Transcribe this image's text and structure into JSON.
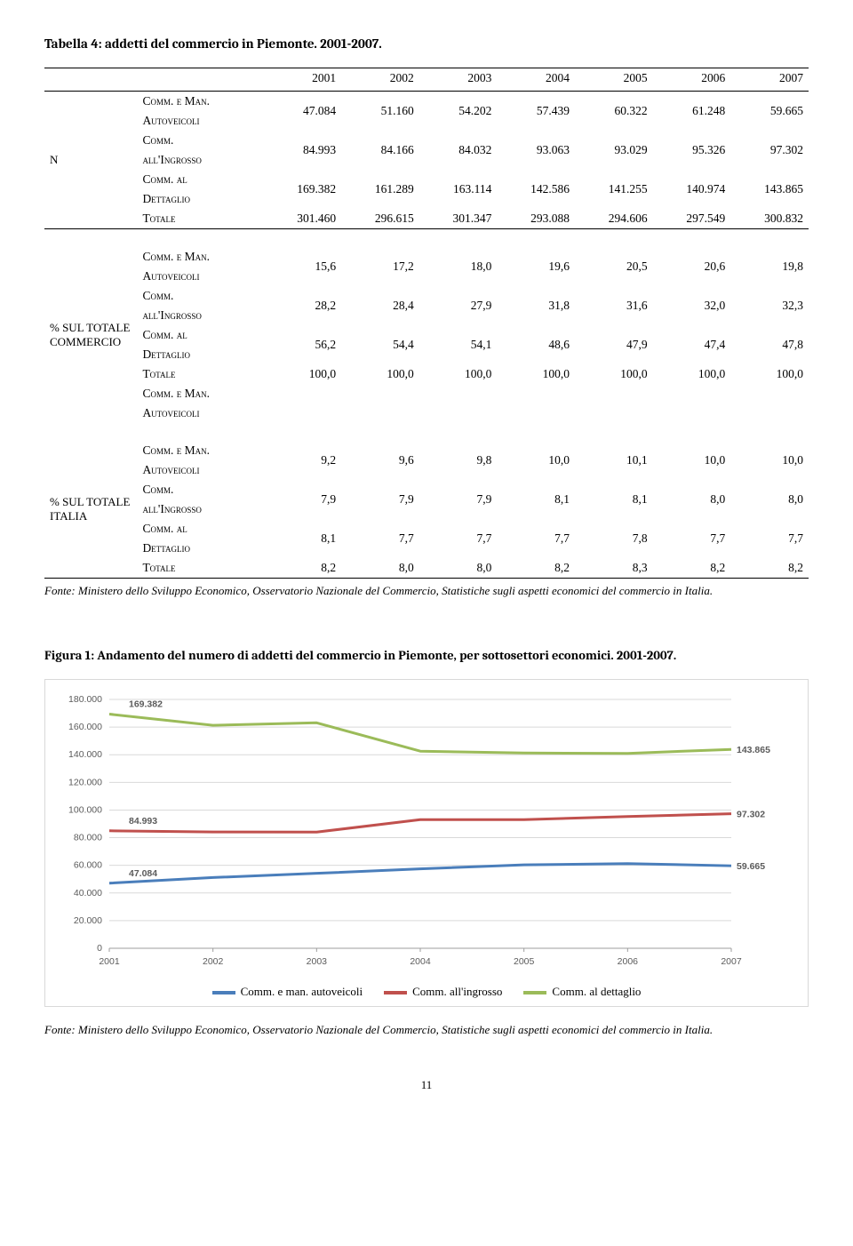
{
  "table": {
    "title": "Tabella 4: addetti del commercio in Piemonte. 2001-2007.",
    "years": [
      "2001",
      "2002",
      "2003",
      "2004",
      "2005",
      "2006",
      "2007"
    ],
    "groups": [
      {
        "label": "N",
        "rows": [
          {
            "labelA": "Comm. e Man.",
            "labelB": "Autoveicoli",
            "cells": [
              "47.084",
              "51.160",
              "54.202",
              "57.439",
              "60.322",
              "61.248",
              "59.665"
            ]
          },
          {
            "labelA": "Comm.",
            "labelB": "all'Ingrosso",
            "cells": [
              "84.993",
              "84.166",
              "84.032",
              "93.063",
              "93.029",
              "95.326",
              "97.302"
            ]
          },
          {
            "labelA": "Comm. al",
            "labelB": "Dettaglio",
            "cells": [
              "169.382",
              "161.289",
              "163.114",
              "142.586",
              "141.255",
              "140.974",
              "143.865"
            ]
          },
          {
            "labelA": "Totale",
            "labelB": "",
            "cells": [
              "301.460",
              "296.615",
              "301.347",
              "293.088",
              "294.606",
              "297.549",
              "300.832"
            ]
          }
        ]
      },
      {
        "label": "% SUL TOTALE COMMERCIO",
        "rows": [
          {
            "labelA": "Comm. e Man.",
            "labelB": "Autoveicoli",
            "cells": [
              "15,6",
              "17,2",
              "18,0",
              "19,6",
              "20,5",
              "20,6",
              "19,8"
            ]
          },
          {
            "labelA": "Comm.",
            "labelB": "all'Ingrosso",
            "cells": [
              "28,2",
              "28,4",
              "27,9",
              "31,8",
              "31,6",
              "32,0",
              "32,3"
            ]
          },
          {
            "labelA": "Comm. al",
            "labelB": "Dettaglio",
            "cells": [
              "56,2",
              "54,4",
              "54,1",
              "48,6",
              "47,9",
              "47,4",
              "47,8"
            ]
          },
          {
            "labelA": "Totale",
            "labelB": "",
            "cells": [
              "100,0",
              "100,0",
              "100,0",
              "100,0",
              "100,0",
              "100,0",
              "100,0"
            ]
          },
          {
            "labelA": "Comm. e Man.",
            "labelB": "Autoveicoli",
            "cells": [
              "",
              "",
              "",
              "",
              "",
              "",
              ""
            ]
          }
        ]
      },
      {
        "label": "% SUL TOTALE ITALIA",
        "rows": [
          {
            "labelA": "Comm. e Man.",
            "labelB": "Autoveicoli",
            "cells": [
              "9,2",
              "9,6",
              "9,8",
              "10,0",
              "10,1",
              "10,0",
              "10,0"
            ]
          },
          {
            "labelA": "Comm.",
            "labelB": "all'Ingrosso",
            "cells": [
              "7,9",
              "7,9",
              "7,9",
              "8,1",
              "8,1",
              "8,0",
              "8,0"
            ]
          },
          {
            "labelA": "Comm. al",
            "labelB": "Dettaglio",
            "cells": [
              "8,1",
              "7,7",
              "7,7",
              "7,7",
              "7,8",
              "7,7",
              "7,7"
            ]
          },
          {
            "labelA": "Totale",
            "labelB": "",
            "cells": [
              "8,2",
              "8,0",
              "8,0",
              "8,2",
              "8,3",
              "8,2",
              "8,2"
            ]
          }
        ]
      }
    ],
    "source": "Fonte: Ministero dello Sviluppo Economico, Osservatorio Nazionale del Commercio, Statistiche sugli aspetti economici del commercio in Italia."
  },
  "figure": {
    "title": "Figura 1: Andamento del numero di addetti del commercio in Piemonte, per sottosettori economici. 2001-2007.",
    "type": "line",
    "background_color": "#ffffff",
    "border_color": "#d9d9d9",
    "grid_color": "#d9d9d9",
    "axis_color": "#9e9e9e",
    "tick_label_color": "#5b5b5b",
    "data_label_color": "#3a3a3a",
    "data_label_fontweight": "bold",
    "line_width": 3,
    "x_categories": [
      "2001",
      "2002",
      "2003",
      "2004",
      "2005",
      "2006",
      "2007"
    ],
    "y_ticks": [
      0,
      20000,
      40000,
      60000,
      80000,
      100000,
      120000,
      140000,
      160000,
      180000
    ],
    "y_tick_labels": [
      "0",
      "20.000",
      "40.000",
      "60.000",
      "80.000",
      "100.000",
      "120.000",
      "140.000",
      "160.000",
      "180.000"
    ],
    "ylim": [
      0,
      180000
    ],
    "series": [
      {
        "name": "Comm. e man. autoveicoli",
        "color": "#4a7ebb",
        "values": [
          47084,
          51160,
          54202,
          57439,
          60322,
          61248,
          59665
        ],
        "start_label": "47.084",
        "end_label": "59.665"
      },
      {
        "name": "Comm. all'ingrosso",
        "color": "#c0504d",
        "values": [
          84993,
          84166,
          84032,
          93063,
          93029,
          95326,
          97302
        ],
        "start_label": "84.993",
        "end_label": "97.302"
      },
      {
        "name": "Comm. al dettaglio",
        "color": "#9bbb59",
        "values": [
          169382,
          161289,
          163114,
          142586,
          141255,
          140974,
          143865
        ],
        "start_label": "169.382",
        "end_label": "143.865"
      }
    ],
    "source": "Fonte: Ministero dello Sviluppo Economico, Osservatorio Nazionale del Commercio, Statistiche sugli aspetti economici del commercio in Italia."
  },
  "page_number": "11"
}
